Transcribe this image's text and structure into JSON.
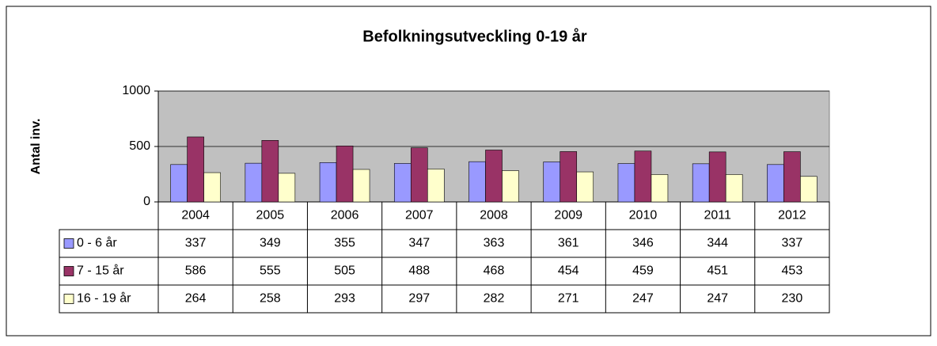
{
  "chart_data": {
    "type": "bar",
    "title": "Befolkningsutveckling 0-19 år",
    "y_label": "Antal inv.",
    "categories": [
      "2004",
      "2005",
      "2006",
      "2007",
      "2008",
      "2009",
      "2010",
      "2011",
      "2012"
    ],
    "series": [
      {
        "name": "0 - 6 år",
        "color": "#9999ff",
        "values": [
          337,
          349,
          355,
          347,
          363,
          361,
          346,
          344,
          337
        ]
      },
      {
        "name": "7 - 15 år",
        "color": "#993366",
        "values": [
          586,
          555,
          505,
          488,
          468,
          454,
          459,
          451,
          453
        ]
      },
      {
        "name": "16 - 19 år",
        "color": "#ffffcc",
        "values": [
          264,
          258,
          293,
          297,
          282,
          271,
          247,
          247,
          230
        ]
      }
    ],
    "ylim": [
      0,
      1000
    ],
    "yticks": [
      0,
      500,
      1000
    ],
    "grid": true,
    "plot_background": "#c0c0c0"
  }
}
